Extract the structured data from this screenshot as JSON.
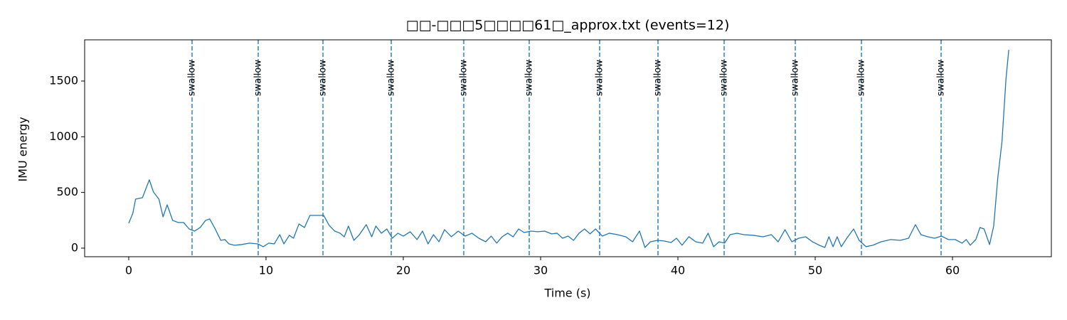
{
  "chart_data": {
    "type": "line",
    "title": "□□-□□□5□□□□61□_approx.txt  (events=12)",
    "xlabel": "Time (s)",
    "ylabel": "IMU energy",
    "color": "#1f77b4",
    "event_color": "#1f77b4",
    "xlim": [
      -3.21,
      67.2
    ],
    "ylim": [
      -77,
      1870
    ],
    "xticks": [
      0,
      10,
      20,
      30,
      40,
      50,
      60
    ],
    "yticks": [
      0,
      500,
      1000,
      1500
    ],
    "x": [
      0,
      0.3,
      0.5,
      1.0,
      1.5,
      1.8,
      2.2,
      2.5,
      2.8,
      3.2,
      3.6,
      4.0,
      4.4,
      4.8,
      5.2,
      5.6,
      5.9,
      6.3,
      6.7,
      7.0,
      7.3,
      7.7,
      8.2,
      8.8,
      9.4,
      9.8,
      10.2,
      10.6,
      11.0,
      11.3,
      11.7,
      12.0,
      12.4,
      12.8,
      13.2,
      13.7,
      14.2,
      14.6,
      15.0,
      15.4,
      15.7,
      16.0,
      16.4,
      16.8,
      17.3,
      17.7,
      18.0,
      18.4,
      18.8,
      19.2,
      19.6,
      20.0,
      20.5,
      21.0,
      21.4,
      21.8,
      22.2,
      22.6,
      23.0,
      23.5,
      24.0,
      24.5,
      25.0,
      25.5,
      26.0,
      26.4,
      26.8,
      27.2,
      27.6,
      28.0,
      28.4,
      28.8,
      29.3,
      29.8,
      30.3,
      30.8,
      31.2,
      31.6,
      32.0,
      32.4,
      32.8,
      33.2,
      33.6,
      34.0,
      34.5,
      35.0,
      35.6,
      36.2,
      36.7,
      37.2,
      37.6,
      38.0,
      38.5,
      39.0,
      39.5,
      39.9,
      40.3,
      40.8,
      41.3,
      41.8,
      42.2,
      42.6,
      43.0,
      43.4,
      43.8,
      44.3,
      44.8,
      45.5,
      46.2,
      46.8,
      47.3,
      47.8,
      48.3,
      48.8,
      49.3,
      49.8,
      50.3,
      50.7,
      51.0,
      51.3,
      51.6,
      51.9,
      52.3,
      52.8,
      53.2,
      53.7,
      54.2,
      54.8,
      55.5,
      56.2,
      56.8,
      57.3,
      57.7,
      58.2,
      58.7,
      59.2,
      59.7,
      60.2,
      60.7,
      61.0,
      61.3,
      61.7,
      62.0,
      62.3,
      62.7,
      63.0,
      63.3,
      63.6,
      63.9,
      64.1
    ],
    "values": [
      223,
      313,
      440,
      453,
      613,
      504,
      440,
      281,
      389,
      249,
      230,
      230,
      172,
      153,
      185,
      249,
      262,
      172,
      70,
      77,
      38,
      26,
      32,
      45,
      38,
      13,
      45,
      38,
      121,
      38,
      115,
      89,
      217,
      185,
      294,
      294,
      294,
      204,
      153,
      134,
      102,
      198,
      70,
      121,
      211,
      102,
      198,
      134,
      172,
      89,
      134,
      108,
      147,
      77,
      153,
      38,
      121,
      57,
      166,
      102,
      153,
      108,
      134,
      89,
      57,
      108,
      45,
      102,
      134,
      102,
      172,
      140,
      153,
      147,
      153,
      128,
      134,
      89,
      108,
      70,
      134,
      172,
      128,
      172,
      108,
      134,
      121,
      102,
      57,
      153,
      6,
      57,
      70,
      64,
      51,
      89,
      26,
      102,
      57,
      45,
      134,
      13,
      57,
      45,
      121,
      134,
      121,
      115,
      102,
      121,
      57,
      166,
      57,
      89,
      102,
      57,
      26,
      6,
      102,
      13,
      102,
      13,
      89,
      172,
      70,
      13,
      26,
      57,
      77,
      70,
      89,
      211,
      121,
      102,
      89,
      108,
      77,
      77,
      45,
      77,
      26,
      77,
      185,
      172,
      32,
      198,
      632,
      951,
      1525,
      1780
    ],
    "annotations": [
      {
        "x": 4.61,
        "text": "swallow"
      },
      {
        "x": 9.43,
        "text": "swallow"
      },
      {
        "x": 14.15,
        "text": "swallow"
      },
      {
        "x": 19.12,
        "text": "swallow"
      },
      {
        "x": 24.4,
        "text": "swallow"
      },
      {
        "x": 29.17,
        "text": "swallow"
      },
      {
        "x": 34.3,
        "text": "swallow"
      },
      {
        "x": 38.55,
        "text": "swallow"
      },
      {
        "x": 43.37,
        "text": "swallow"
      },
      {
        "x": 48.55,
        "text": "swallow"
      },
      {
        "x": 53.37,
        "text": "swallow"
      },
      {
        "x": 59.17,
        "text": "swallow"
      }
    ]
  }
}
